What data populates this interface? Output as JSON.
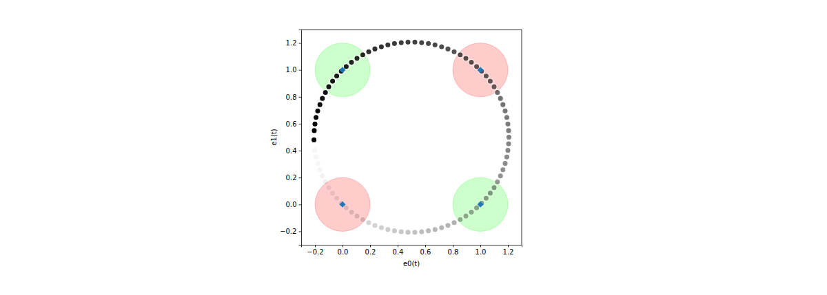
{
  "chart_data": {
    "type": "scatter",
    "x_label": "e0(t)",
    "y_label": "e1(t)",
    "xlim": [
      -0.3,
      1.3
    ],
    "ylim": [
      -0.3,
      1.3
    ],
    "xticks": [
      {
        "value": -0.2,
        "label": "−0.2"
      },
      {
        "value": 0,
        "label": "0.0"
      },
      0.2,
      0.4,
      0.6,
      0.8,
      {
        "value": 1,
        "label": "1.0"
      },
      1.2
    ],
    "yticks": [
      {
        "value": -0.2,
        "label": "−0.2"
      },
      {
        "value": 0,
        "label": "0.0"
      },
      0.2,
      0.4,
      0.6,
      0.8,
      {
        "value": 1,
        "label": "1.0"
      },
      1.2
    ],
    "series": [
      {
        "type": "circle",
        "color": "#00ff00",
        "x": [
          0,
          1
        ],
        "values": [
          1,
          0
        ],
        "radius": [
          0.2,
          0.2
        ]
      },
      {
        "type": "circle",
        "color": "#ff0000",
        "x": [
          1,
          0
        ],
        "values": [
          1,
          0
        ],
        "radius": [
          0.2,
          0.2
        ]
      },
      {
        "type": "scatter",
        "marker": "circle",
        "color": "#000000",
        "x": [
          -0.2,
          -0.192,
          -0.18,
          -0.164,
          -0.146,
          -0.124,
          -0.1,
          -0.072,
          -0.042,
          -0.009,
          0.027,
          0.065,
          0.105,
          0.147,
          0.19,
          0.235,
          0.282,
          0.329,
          0.377,
          0.426,
          0.475,
          0.525,
          0.574,
          0.623,
          0.671,
          0.719,
          0.765,
          0.81,
          0.854,
          0.895,
          0.935,
          0.973,
          1.009,
          1.042,
          1.072,
          1.1,
          1.124,
          1.146,
          1.164,
          1.18,
          1.192,
          1.2,
          1.205,
          1.207,
          1.205,
          1.2,
          1.192,
          1.18,
          1.164,
          1.146,
          1.124,
          1.1,
          1.072,
          1.042,
          1.009,
          0.973,
          0.935,
          0.895,
          0.854,
          0.81,
          0.765,
          0.719,
          0.671,
          0.623,
          0.574,
          0.525,
          0.475,
          0.426,
          0.377,
          0.329,
          0.282,
          0.235,
          0.19,
          0.147,
          0.105,
          0.065,
          0.027,
          -0.009,
          -0.042,
          -0.072,
          -0.1,
          -0.124,
          -0.146,
          -0.164,
          -0.18,
          -0.192,
          -0.2,
          -0.205,
          -0.207
        ],
        "values": [
          0.402,
          0.353,
          0.305,
          0.258,
          0.212,
          0.168,
          0.125,
          0.084,
          0.046,
          0.009,
          -0.025,
          -0.057,
          -0.086,
          -0.112,
          -0.135,
          -0.156,
          -0.172,
          -0.186,
          -0.196,
          -0.203,
          -0.207,
          -0.207,
          -0.203,
          -0.196,
          -0.186,
          -0.172,
          -0.156,
          -0.135,
          -0.112,
          -0.086,
          -0.057,
          -0.025,
          0.009,
          0.046,
          0.084,
          0.125,
          0.168,
          0.212,
          0.258,
          0.305,
          0.353,
          0.402,
          0.451,
          0.5,
          0.549,
          0.598,
          0.647,
          0.695,
          0.742,
          0.788,
          0.832,
          0.875,
          0.916,
          0.955,
          0.991,
          1.025,
          1.057,
          1.086,
          1.112,
          1.135,
          1.156,
          1.172,
          1.186,
          1.196,
          1.203,
          1.207,
          1.207,
          1.203,
          1.196,
          1.186,
          1.172,
          1.156,
          1.135,
          1.112,
          1.086,
          1.057,
          1.025,
          0.991,
          0.955,
          0.916,
          0.875,
          0.832,
          0.788,
          0.742,
          0.695,
          0.647,
          0.598,
          0.549,
          0.48
        ]
      },
      {
        "type": "scatter",
        "marker": "diamond",
        "color": "#1f77b4",
        "x": [
          0,
          1,
          1,
          0
        ],
        "values": [
          1,
          1,
          0,
          0
        ]
      }
    ]
  }
}
